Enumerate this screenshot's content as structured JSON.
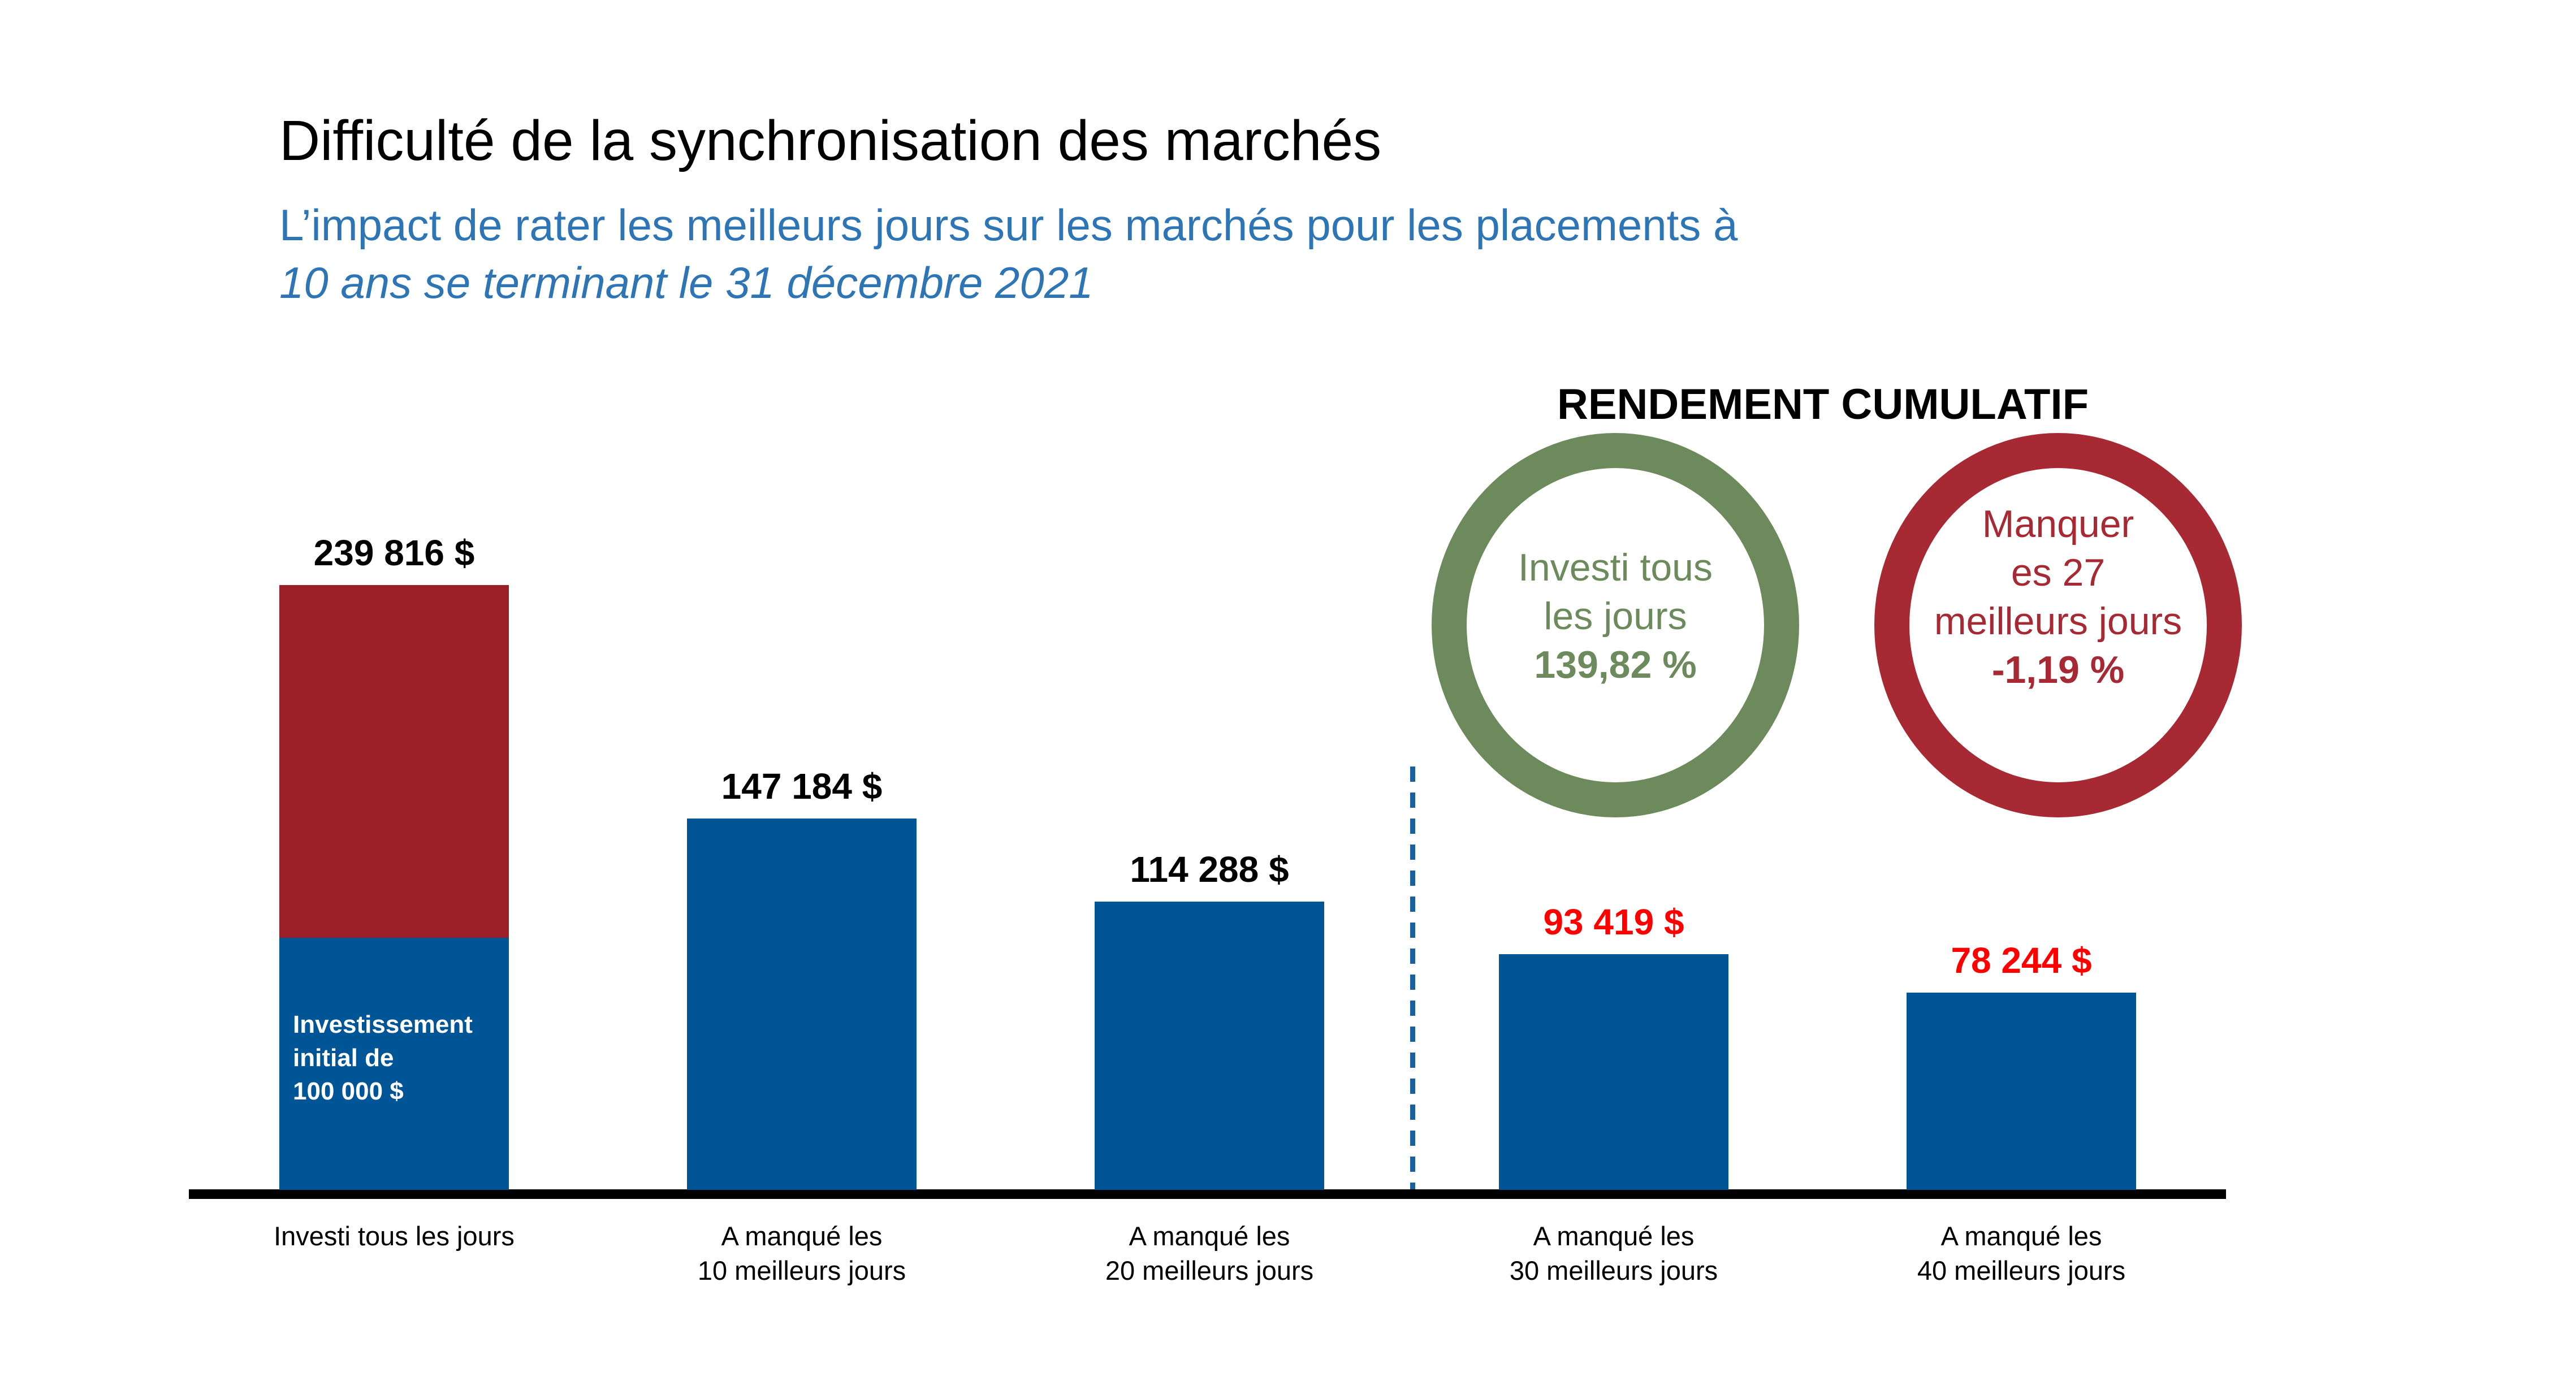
{
  "header": {
    "title": "Difficulté de la synchronisation des marchés",
    "title_color": "#000000",
    "subtitle_line1": "L’impact de rater les meilleurs jours sur les marchés pour les placements à",
    "subtitle_line2": "10 ans se terminant le 31 décembre 2021",
    "subtitle_color": "#2E75B6"
  },
  "cumulative_section": {
    "heading": "RENDEMENT CUMULATIF",
    "badges": [
      {
        "name": "invested-every-day",
        "lines": [
          "Investi tous",
          "les jours"
        ],
        "value": "139,82 %",
        "color": "#6C8A5C"
      },
      {
        "name": "missed-27-best-days",
        "lines": [
          "Manquer",
          "es 27",
          "meilleurs jours"
        ],
        "value": "-1,19 %",
        "color": "#A62933"
      }
    ]
  },
  "chart_data": {
    "type": "bar",
    "title": "",
    "xlabel": "",
    "ylabel": "",
    "ylim": [
      0,
      239816
    ],
    "grid": false,
    "categories": [
      "Investi tous les jours",
      "A manqué les 10 meilleurs jours",
      "A manqué les 20 meilleurs jours",
      "A manqué les 30 meilleurs jours",
      "A manqué les 40 meilleurs jours"
    ],
    "category_lines": [
      [
        "Investi tous les jours"
      ],
      [
        "A manqué les",
        "10 meilleurs jours"
      ],
      [
        "A manqué les",
        "20 meilleurs jours"
      ],
      [
        "A manqué les",
        "30 meilleurs jours"
      ],
      [
        "A manqué les",
        "40 meilleurs jours"
      ]
    ],
    "values": [
      239816,
      147184,
      114288,
      93419,
      78244
    ],
    "value_labels": [
      "239 816 $",
      "147 184 $",
      "114 288 $",
      "93 419 $",
      "78 244 $"
    ],
    "value_label_colors": [
      "#000000",
      "#000000",
      "#000000",
      "#FF0000",
      "#FF0000"
    ],
    "bar_color": "#005596",
    "initial_investment_segment": {
      "bar_index": 0,
      "value": 100000,
      "label_lines": [
        "Investissement",
        "initial de",
        "100 000 $"
      ],
      "text_color": "#FFFFFF",
      "growth_color": "#9A1F26"
    },
    "baseline_color": "#000000",
    "divider": {
      "after_category_index": 2,
      "style": "dashed",
      "color": "#1C5F9D"
    }
  }
}
